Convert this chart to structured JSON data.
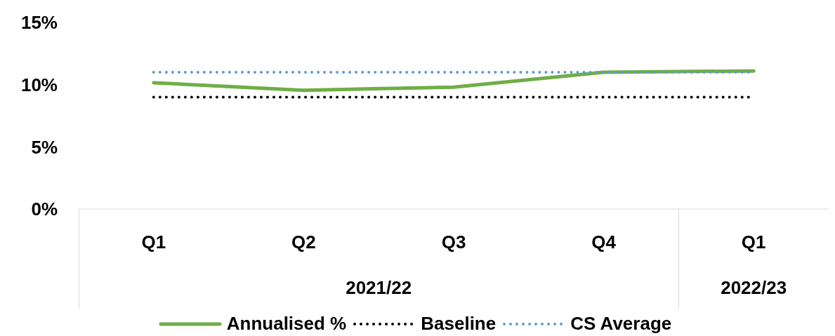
{
  "chart_data": {
    "type": "line",
    "categories": [
      "Q1",
      "Q2",
      "Q3",
      "Q4",
      "Q1"
    ],
    "series": [
      {
        "name": "Annualised %",
        "color": "#70ad47",
        "line_style": "solid",
        "values": [
          10.15,
          9.55,
          9.8,
          11.0,
          11.1
        ]
      },
      {
        "name": "Baseline",
        "color": "#000000",
        "line_style": "dotted",
        "values": [
          9,
          9,
          9,
          9,
          9
        ]
      },
      {
        "name": "CS Average",
        "color": "#5b9bd5",
        "line_style": "dotted",
        "values": [
          11,
          11,
          11,
          11,
          11
        ]
      }
    ],
    "ylim": [
      0,
      15
    ],
    "yticks": [
      {
        "value": 0,
        "label": "0%"
      },
      {
        "value": 5,
        "label": "5%"
      },
      {
        "value": 10,
        "label": "10%"
      },
      {
        "value": 15,
        "label": "15%"
      }
    ],
    "annotations": [
      "2021/22",
      "2022/23"
    ],
    "grid": false,
    "legend": "bottom",
    "marker": "none"
  }
}
